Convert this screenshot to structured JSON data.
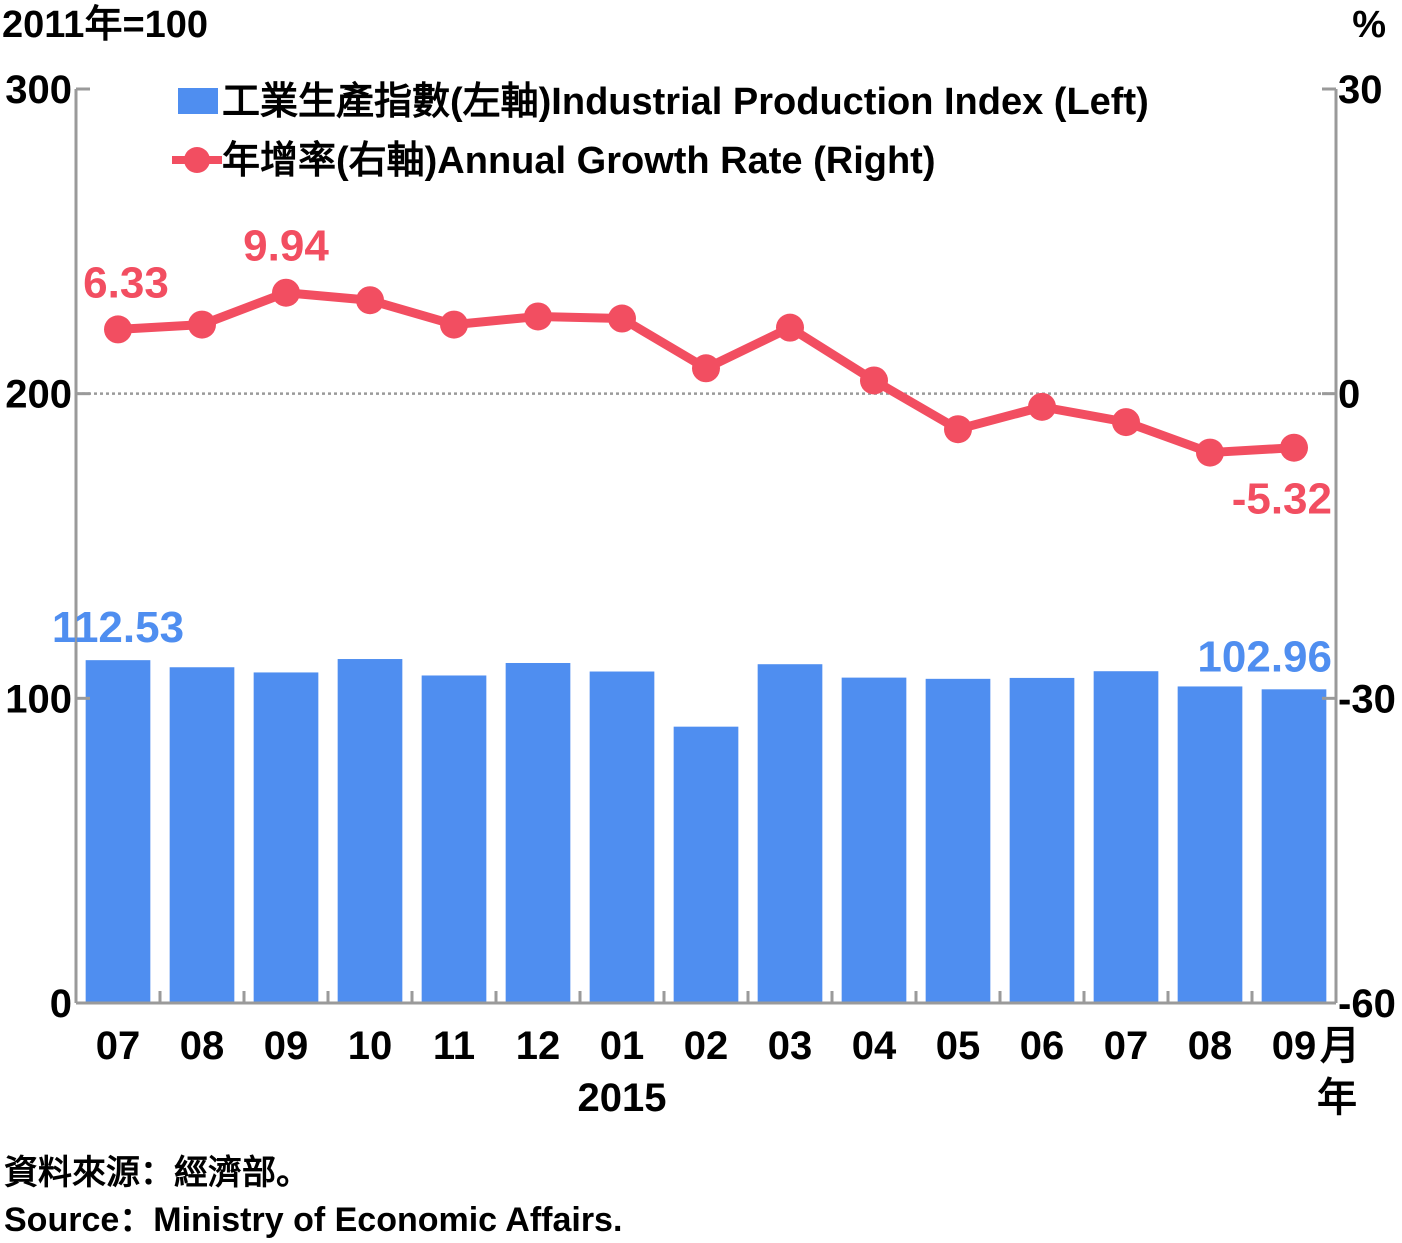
{
  "chart_data": {
    "type": "bar+line",
    "categories": [
      "07",
      "08",
      "09",
      "10",
      "11",
      "12",
      "01",
      "02",
      "03",
      "04",
      "05",
      "06",
      "07",
      "08",
      "09"
    ],
    "year_label": "2015",
    "x_unit": "月",
    "x_unit_2": "年",
    "left_unit": "2011年=100",
    "right_unit": "%",
    "left_ylim": [
      0,
      300
    ],
    "left_ticks": [
      "0",
      "100",
      "200",
      "300"
    ],
    "right_ylim": [
      -60,
      30
    ],
    "right_ticks": [
      "-60",
      "-30",
      "0",
      "30"
    ],
    "series": [
      {
        "name": "工業生產指數(左軸)Industrial Production Index (Left)",
        "type": "bar",
        "axis": "left",
        "color": "#4f8ef0",
        "values": [
          112.53,
          110.2,
          108.5,
          112.9,
          107.5,
          111.6,
          108.8,
          90.7,
          111.2,
          106.8,
          106.4,
          106.7,
          108.9,
          103.9,
          102.96
        ]
      },
      {
        "name": "年增率(右軸)Annual Growth Rate (Right)",
        "type": "line",
        "axis": "right",
        "color": "#f24e61",
        "values": [
          6.33,
          6.8,
          9.94,
          9.2,
          6.8,
          7.6,
          7.4,
          2.5,
          6.5,
          1.3,
          -3.5,
          -1.3,
          -2.8,
          -5.8,
          -5.32
        ]
      }
    ],
    "data_labels": [
      {
        "series": 0,
        "index": 0,
        "text": "112.53"
      },
      {
        "series": 0,
        "index": 14,
        "text": "102.96"
      },
      {
        "series": 1,
        "index": 0,
        "text": "6.33"
      },
      {
        "series": 1,
        "index": 2,
        "text": "9.94"
      },
      {
        "series": 1,
        "index": 14,
        "text": "-5.32"
      }
    ],
    "zero_line_right": true,
    "legend_position": "top"
  },
  "source": {
    "zh": "資料來源：經濟部。",
    "en": "Source：Ministry of Economic Affairs."
  }
}
